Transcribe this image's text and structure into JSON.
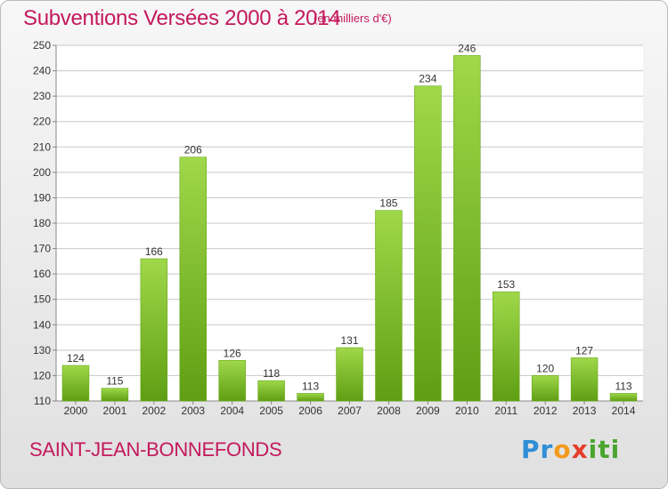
{
  "header": {
    "title": "Subventions Versées 2000 à 2014",
    "unit": "(en milliers d'€)"
  },
  "footer": {
    "commune": "SAINT-JEAN-BONNEFONDS",
    "logo": "Proxiti"
  },
  "colors": {
    "title": "#c4195c",
    "bar_top": "#9fd84a",
    "bar_bottom": "#5f9e13",
    "grid": "#c8c8c8"
  },
  "chart_data": {
    "type": "bar",
    "categories": [
      "2000",
      "2001",
      "2002",
      "2003",
      "2004",
      "2005",
      "2006",
      "2007",
      "2008",
      "2009",
      "2010",
      "2011",
      "2012",
      "2013",
      "2014"
    ],
    "values": [
      124,
      115,
      166,
      206,
      126,
      118,
      113,
      131,
      185,
      234,
      246,
      153,
      120,
      127,
      113
    ],
    "ylim": [
      110,
      250
    ],
    "yticks": [
      110,
      120,
      130,
      140,
      150,
      160,
      170,
      180,
      190,
      200,
      210,
      220,
      230,
      240,
      250
    ],
    "grid": true,
    "data_labels": true
  }
}
